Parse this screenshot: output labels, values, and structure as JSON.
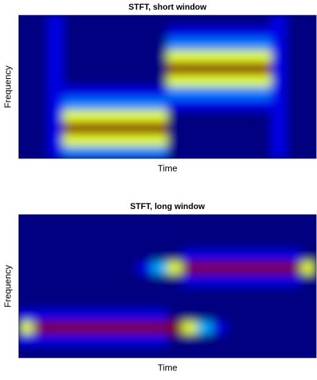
{
  "chart_data": [
    {
      "type": "heatmap",
      "title": "STFT, short window",
      "xlabel": "Time",
      "ylabel": "Frequency",
      "colormap": "jet",
      "z": [
        [
          0,
          0,
          0.1,
          0,
          0,
          0,
          0,
          0,
          0,
          0,
          0,
          0,
          0,
          0,
          0,
          0,
          0,
          0.1,
          0,
          0
        ],
        [
          0,
          0,
          0.1,
          0,
          0,
          0,
          0,
          0,
          0,
          0,
          0.1,
          0.1,
          0.1,
          0.1,
          0.1,
          0.1,
          0.1,
          0.1,
          0,
          0
        ],
        [
          0,
          0,
          0.1,
          0,
          0,
          0,
          0,
          0,
          0,
          0,
          0.25,
          0.25,
          0.25,
          0.25,
          0.25,
          0.25,
          0.25,
          0.1,
          0,
          0
        ],
        [
          0,
          0,
          0.1,
          0,
          0,
          0,
          0,
          0,
          0,
          0,
          0.6,
          0.6,
          0.6,
          0.6,
          0.6,
          0.6,
          0.6,
          0.1,
          0,
          0
        ],
        [
          0,
          0,
          0.1,
          0,
          0,
          0,
          0,
          0,
          0,
          0,
          1,
          1,
          1,
          1,
          1,
          1,
          1,
          0.1,
          0,
          0
        ],
        [
          0,
          0,
          0.1,
          0,
          0,
          0,
          0,
          0,
          0,
          0,
          0.6,
          0.6,
          0.6,
          0.6,
          0.6,
          0.6,
          0.6,
          0.1,
          0,
          0
        ],
        [
          0,
          0,
          0.1,
          0.1,
          0.1,
          0.1,
          0.1,
          0.1,
          0.1,
          0.1,
          0.25,
          0.25,
          0.25,
          0.25,
          0.25,
          0.25,
          0.25,
          0.1,
          0,
          0
        ],
        [
          0,
          0,
          0.1,
          0.25,
          0.25,
          0.25,
          0.25,
          0.25,
          0.25,
          0.25,
          0.1,
          0.1,
          0.1,
          0.1,
          0.1,
          0.1,
          0.1,
          0.1,
          0,
          0
        ],
        [
          0,
          0,
          0.1,
          0.6,
          0.6,
          0.6,
          0.6,
          0.6,
          0.6,
          0.6,
          0,
          0,
          0,
          0,
          0,
          0,
          0,
          0.1,
          0,
          0
        ],
        [
          0,
          0,
          0.1,
          1,
          1,
          1,
          1,
          1,
          1,
          1,
          0,
          0,
          0,
          0,
          0,
          0,
          0,
          0.1,
          0,
          0
        ],
        [
          0,
          0,
          0.1,
          0.6,
          0.6,
          0.6,
          0.6,
          0.6,
          0.6,
          0.6,
          0,
          0,
          0,
          0,
          0,
          0,
          0,
          0.1,
          0,
          0
        ],
        [
          0,
          0,
          0.1,
          0.25,
          0.25,
          0.25,
          0.25,
          0.25,
          0.25,
          0.25,
          0,
          0,
          0,
          0,
          0,
          0,
          0,
          0.1,
          0,
          0
        ]
      ]
    },
    {
      "type": "heatmap",
      "title": "STFT, long window",
      "xlabel": "Time",
      "ylabel": "Frequency",
      "colormap": "jet",
      "z": [
        [
          0,
          0,
          0,
          0,
          0,
          0,
          0,
          0,
          0,
          0,
          0,
          0,
          0,
          0,
          0,
          0,
          0,
          0,
          0,
          0
        ],
        [
          0,
          0,
          0,
          0,
          0,
          0,
          0,
          0,
          0,
          0,
          0,
          0,
          0,
          0,
          0,
          0,
          0,
          0,
          0,
          0
        ],
        [
          0,
          0,
          0,
          0,
          0,
          0,
          0,
          0,
          0,
          0,
          0,
          0,
          0,
          0,
          0,
          0,
          0,
          0,
          0,
          0
        ],
        [
          0,
          0,
          0,
          0,
          0,
          0,
          0,
          0,
          0,
          0,
          0,
          0.1,
          0.1,
          0.1,
          0.1,
          0.1,
          0.1,
          0.1,
          0.1,
          0
        ],
        [
          0,
          0,
          0,
          0,
          0,
          0,
          0,
          0,
          0.1,
          0.3,
          0.6,
          1,
          1,
          1,
          1,
          1,
          1,
          1,
          1,
          0.6
        ],
        [
          0,
          0,
          0,
          0,
          0,
          0,
          0,
          0,
          0,
          0,
          0,
          0.1,
          0.1,
          0.1,
          0.1,
          0.1,
          0.1,
          0.1,
          0.1,
          0
        ],
        [
          0,
          0,
          0,
          0,
          0,
          0,
          0,
          0,
          0,
          0,
          0,
          0,
          0,
          0,
          0,
          0,
          0,
          0,
          0,
          0
        ],
        [
          0,
          0,
          0,
          0,
          0,
          0,
          0,
          0,
          0,
          0,
          0,
          0,
          0,
          0,
          0,
          0,
          0,
          0,
          0,
          0
        ],
        [
          0.1,
          0.1,
          0.1,
          0.1,
          0.1,
          0.1,
          0.1,
          0.1,
          0.1,
          0.1,
          0,
          0,
          0,
          0,
          0,
          0,
          0,
          0,
          0,
          0
        ],
        [
          0.6,
          1,
          1,
          1,
          1,
          1,
          1,
          1,
          1,
          1,
          1,
          0.6,
          0.3,
          0.1,
          0,
          0,
          0,
          0,
          0,
          0
        ],
        [
          0.1,
          0.1,
          0.1,
          0.1,
          0.1,
          0.1,
          0.1,
          0.1,
          0.1,
          0.1,
          0,
          0,
          0,
          0,
          0,
          0,
          0,
          0,
          0,
          0
        ],
        [
          0,
          0,
          0,
          0,
          0,
          0,
          0,
          0,
          0,
          0,
          0,
          0,
          0,
          0,
          0,
          0,
          0,
          0,
          0,
          0
        ]
      ]
    }
  ]
}
